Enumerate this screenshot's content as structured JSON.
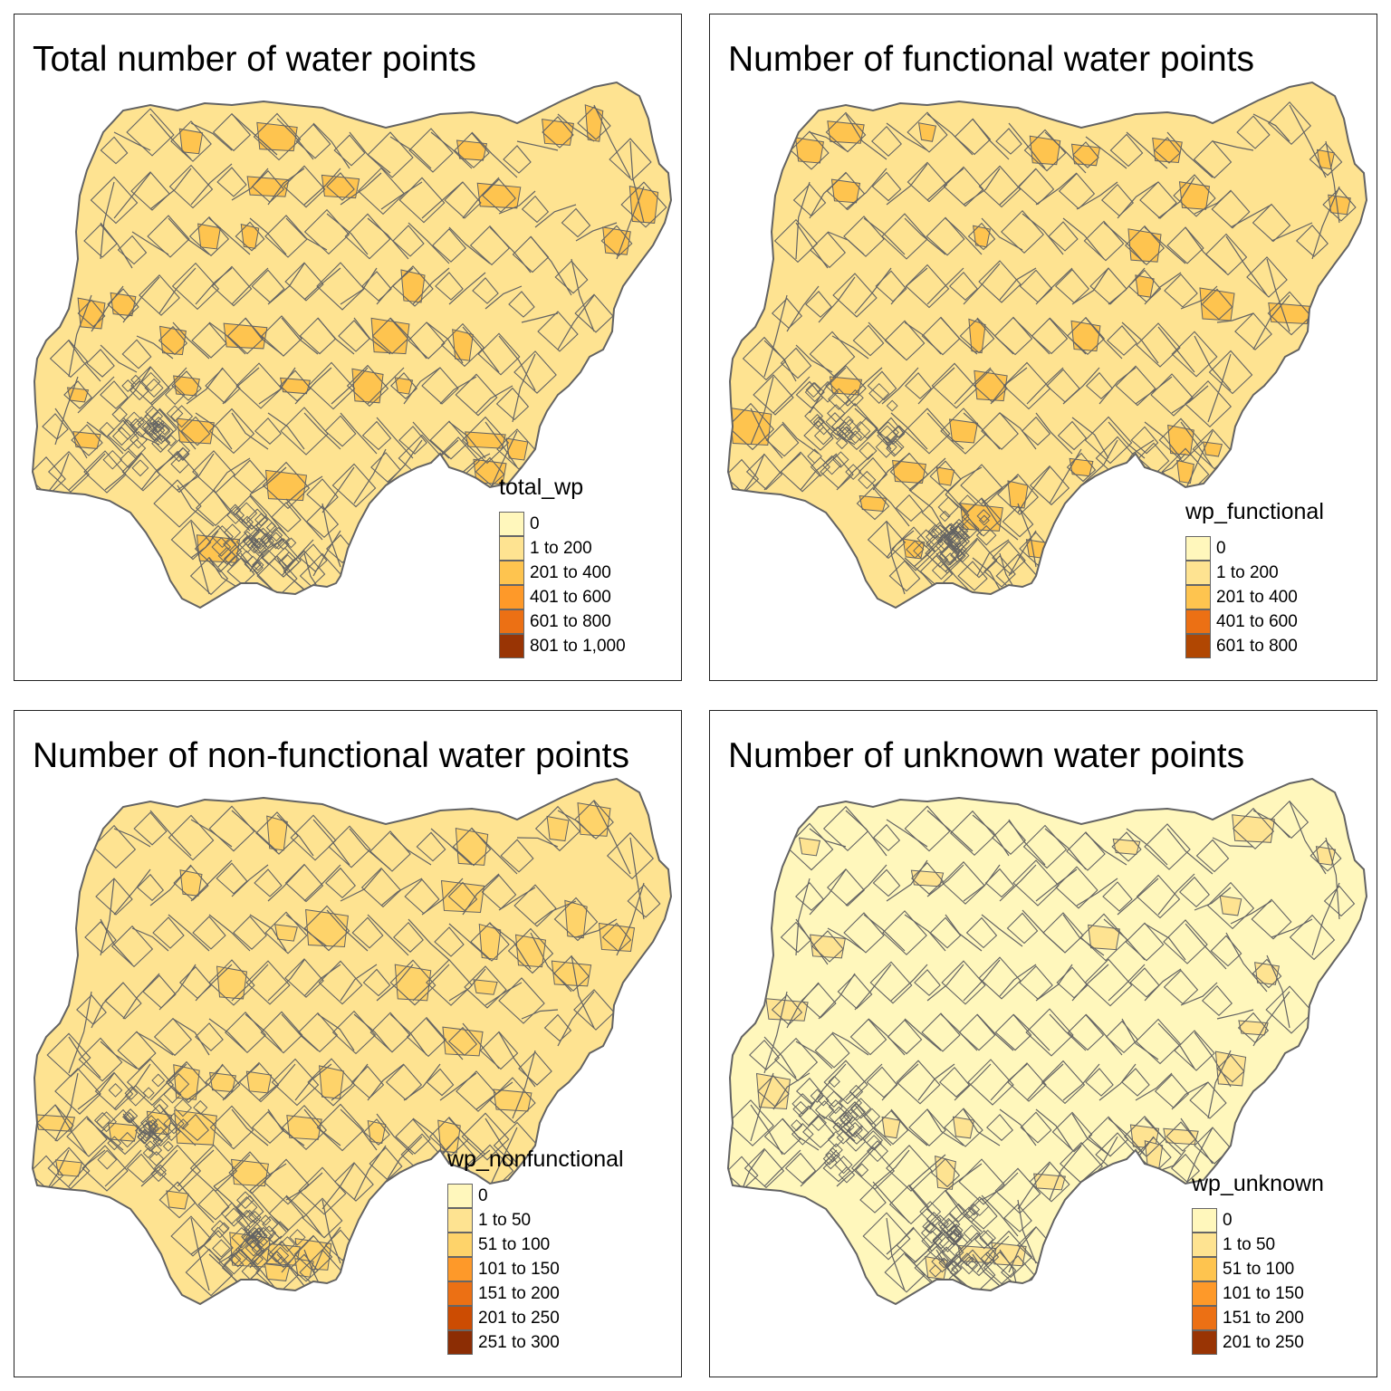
{
  "colors": {
    "boundary": "#636363",
    "ramp6": [
      "#FFF7BC",
      "#FEE391",
      "#FEC44F",
      "#FE9929",
      "#EC7014",
      "#B14702"
    ],
    "ramp7": [
      "#FFF7BC",
      "#FEE391",
      "#FEC44F",
      "#FE9929",
      "#EC7014",
      "#CC4C02",
      "#8C2D04"
    ]
  },
  "panels": [
    {
      "title": "Total number of water points",
      "legend": {
        "title": "total_wp",
        "items": [
          {
            "label": "0",
            "color": "#FFF7BC"
          },
          {
            "label": "1 to 200",
            "color": "#FEE391"
          },
          {
            "label": "201 to 400",
            "color": "#FEC44F"
          },
          {
            "label": "401 to 600",
            "color": "#FE9929"
          },
          {
            "label": "601 to 800",
            "color": "#EC7014"
          },
          {
            "label": "801 to 1,000",
            "color": "#993404"
          }
        ]
      }
    },
    {
      "title": "Number of functional water points",
      "legend": {
        "title": "wp_functional",
        "items": [
          {
            "label": "0",
            "color": "#FFF7BC"
          },
          {
            "label": "1 to 200",
            "color": "#FEE391"
          },
          {
            "label": "201 to 400",
            "color": "#FEC44F"
          },
          {
            "label": "401 to 600",
            "color": "#EC7014"
          },
          {
            "label": "601 to 800",
            "color": "#B14702"
          }
        ]
      }
    },
    {
      "title": "Number of non-functional water points",
      "legend": {
        "title": "wp_nonfunctional",
        "items": [
          {
            "label": "0",
            "color": "#FFF7BC"
          },
          {
            "label": "1 to 50",
            "color": "#FEE391"
          },
          {
            "label": "51 to 100",
            "color": "#FED36A"
          },
          {
            "label": "101 to 150",
            "color": "#FE9929"
          },
          {
            "label": "151 to 200",
            "color": "#EC7014"
          },
          {
            "label": "201 to 250",
            "color": "#CC4C02"
          },
          {
            "label": "251 to 300",
            "color": "#8C2D04"
          }
        ]
      }
    },
    {
      "title": "Number of unknown water points",
      "legend": {
        "title": "wp_unknown",
        "items": [
          {
            "label": "0",
            "color": "#FFF7BC"
          },
          {
            "label": "1 to 50",
            "color": "#FEE391"
          },
          {
            "label": "51 to 100",
            "color": "#FEC44F"
          },
          {
            "label": "101 to 150",
            "color": "#FE9929"
          },
          {
            "label": "151 to 200",
            "color": "#EC7014"
          },
          {
            "label": "201 to 250",
            "color": "#993404"
          }
        ]
      }
    }
  ]
}
